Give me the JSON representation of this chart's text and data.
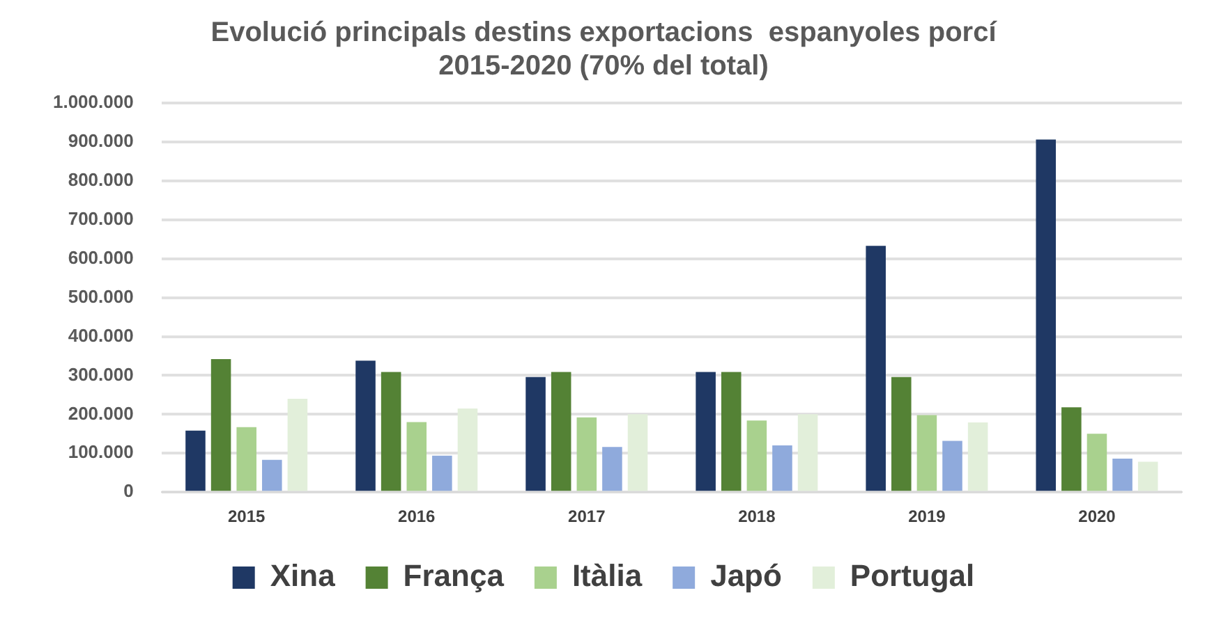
{
  "chart_data": {
    "type": "bar",
    "title": "Evolució principals destins exportacions  espanyoles porcí\n2015-2020 (70% del total)",
    "categories": [
      "2015",
      "2016",
      "2017",
      "2018",
      "2019",
      "2020"
    ],
    "series": [
      {
        "name": "Xina",
        "color": "#1f3864",
        "values": [
          158000,
          338000,
          296000,
          309000,
          633000,
          906000
        ]
      },
      {
        "name": "França",
        "color": "#548235",
        "values": [
          342000,
          309000,
          309000,
          309000,
          296000,
          218000
        ]
      },
      {
        "name": "Itàlia",
        "color": "#a9d18e",
        "values": [
          167000,
          180000,
          192000,
          184000,
          198000,
          150000
        ]
      },
      {
        "name": "Japó",
        "color": "#8faadc",
        "values": [
          83000,
          94000,
          116000,
          120000,
          132000,
          86000
        ]
      },
      {
        "name": "Portugal",
        "color": "#e2efda",
        "values": [
          240000,
          215000,
          200000,
          200000,
          179000,
          78000
        ]
      }
    ],
    "ylim": [
      0,
      1000000
    ],
    "yticks": [
      0,
      {
        "value": 100000,
        "label": "100.000"
      },
      {
        "value": 200000,
        "label": "200.000"
      },
      {
        "value": 300000,
        "label": "300.000"
      },
      {
        "value": 400000,
        "label": "400.000"
      },
      {
        "value": 500000,
        "label": "500.000"
      },
      {
        "value": 600000,
        "label": "600.000"
      },
      {
        "value": 700000,
        "label": "700.000"
      },
      {
        "value": 800000,
        "label": "800.000"
      },
      {
        "value": 900000,
        "label": "900.000"
      },
      {
        "value": 1000000,
        "label": "1.000.000"
      }
    ],
    "grid": "y",
    "legend": "bottom"
  }
}
